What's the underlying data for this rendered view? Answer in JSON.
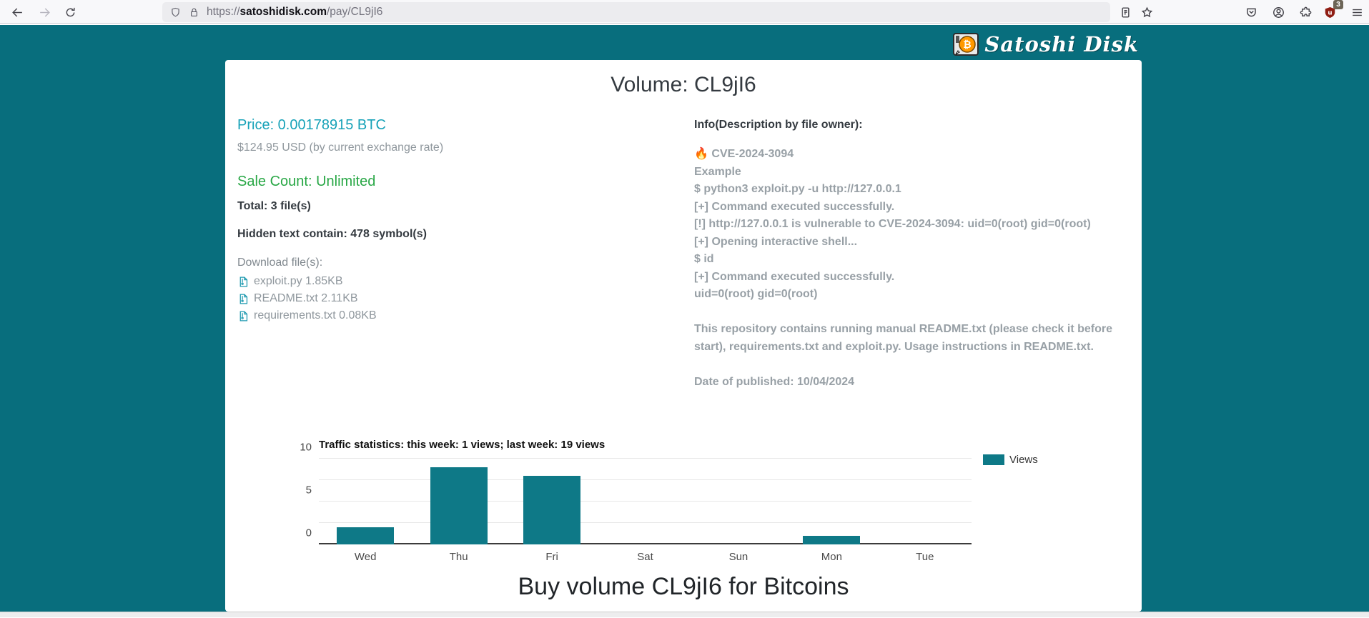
{
  "browser": {
    "url": {
      "scheme": "https://",
      "domain": "satoshidisk.com",
      "path": "/pay/CL9jI6"
    },
    "extension_badge": "3",
    "icons": [
      "back-icon",
      "forward-icon",
      "reload-icon",
      "shield-icon",
      "lock-icon",
      "reader-mode-icon",
      "bookmark-star-icon",
      "pocket-icon",
      "account-icon",
      "extensions-icon",
      "ublock-shield-icon",
      "menu-icon"
    ]
  },
  "header": {
    "brand": "Satoshi Disk"
  },
  "page": {
    "title": "Volume: CL9jI6",
    "price_btc": "Price: 0.00178915 BTC",
    "price_usd": "$124.95 USD (by current exchange rate)",
    "sale_count": "Sale Count: Unlimited",
    "total_files": "Total: 3 file(s)",
    "hidden_text": "Hidden text contain: 478 symbol(s)",
    "download_label": "Download file(s):",
    "files": [
      {
        "label": "exploit.py 1.85KB"
      },
      {
        "label": "README.txt 2.11KB"
      },
      {
        "label": "requirements.txt 0.08KB"
      }
    ],
    "info_title": "Info(Description by file owner):",
    "description_lines": [
      "🔥 CVE-2024-3094",
      "Example",
      "$ python3 exploit.py -u http://127.0.0.1",
      "[+] Command executed successfully.",
      "[!] http://127.0.0.1 is vulnerable to CVE-2024-3094: uid=0(root) gid=0(root)",
      "[+] Opening interactive shell...",
      "$ id",
      "[+] Command executed successfully.",
      "uid=0(root) gid=0(root)",
      "",
      "This repository contains running manual README.txt (please check it before start), requirements.txt and exploit.py. Usage instructions in README.txt.",
      "",
      "Date of published: 10/04/2024"
    ],
    "buy_heading": "Buy volume CL9jI6 for Bitcoins"
  },
  "colors": {
    "hero_teal": "#086e7d",
    "bar_teal": "#0e7987",
    "price_cyan": "#17a2b8",
    "sale_green": "#28a745",
    "muted_gray": "#8f979d"
  },
  "chart_data": {
    "type": "bar",
    "title": "Traffic statistics: this week: 1 views; last week: 19 views",
    "categories": [
      "Wed",
      "Thu",
      "Fri",
      "Sat",
      "Sun",
      "Mon",
      "Tue"
    ],
    "series": [
      {
        "name": "Views",
        "values": [
          2,
          9,
          8,
          0,
          0,
          1,
          0
        ]
      }
    ],
    "xlabel": "",
    "ylabel": "",
    "ylim": [
      0,
      10
    ],
    "yticks_labeled": [
      0,
      5,
      10
    ],
    "gridline_step": 2.5,
    "grid": true,
    "bar_color": "#0e7987",
    "legend_position": "right"
  }
}
